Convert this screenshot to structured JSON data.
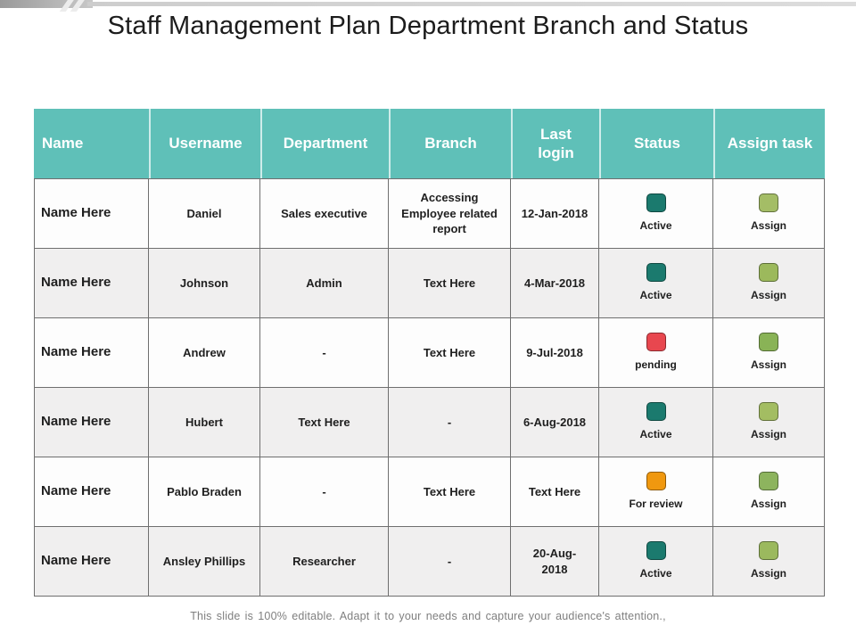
{
  "slide": {
    "title": "Staff Management Plan Department Branch and Status",
    "footer": "This slide is 100% editable. Adapt it to your needs and capture your audience's attention.,"
  },
  "palette": {
    "header_bg": "#5FC0B8",
    "row_alt_bg": "#F0EFEF",
    "grid_border": "#6F6F6F",
    "status_active": "#1B7A6E",
    "status_pending": "#E8474F",
    "status_for_review": "#F0980F",
    "assign_green": "#9BB95E"
  },
  "table": {
    "headers": [
      "Name",
      "Username",
      "Department",
      "Branch",
      "Last login",
      "Status",
      "Assign task"
    ],
    "rows": [
      {
        "name": "Name Here",
        "username": "Daniel",
        "department": "Sales executive",
        "branch": "Accessing Employee related report",
        "last_login": "12-Jan-2018",
        "status": {
          "label": "Active",
          "color": "#1B7A6E"
        },
        "assign": {
          "label": "Assign",
          "color": "#A4BD66"
        }
      },
      {
        "name": "Name Here",
        "username": "Johnson",
        "department": "Admin",
        "branch": "Text Here",
        "last_login": "4-Mar-2018",
        "status": {
          "label": "Active",
          "color": "#1B7A6E"
        },
        "assign": {
          "label": "Assign",
          "color": "#9CB95C"
        }
      },
      {
        "name": "Name Here",
        "username": "Andrew",
        "department": "-",
        "branch": "Text Here",
        "last_login": "9-Jul-2018",
        "status": {
          "label": "pending",
          "color": "#E8474F"
        },
        "assign": {
          "label": "Assign",
          "color": "#89B356"
        }
      },
      {
        "name": "Name Here",
        "username": "Hubert",
        "department": "Text Here",
        "branch": "-",
        "last_login": "6-Aug-2018",
        "status": {
          "label": "Active",
          "color": "#1B7A6E"
        },
        "assign": {
          "label": "Assign",
          "color": "#A3BD62"
        }
      },
      {
        "name": "Name Here",
        "username": "Pablo Braden",
        "department": "-",
        "branch": "Text Here",
        "last_login": "Text Here",
        "status": {
          "label": "For review",
          "color": "#F0980F"
        },
        "assign": {
          "label": "Assign",
          "color": "#8DB45E"
        }
      },
      {
        "name": "Name Here",
        "username": "Ansley Phillips",
        "department": "Researcher",
        "branch": "-",
        "last_login": "20-Aug-2018",
        "status": {
          "label": "Active",
          "color": "#1B7A6E"
        },
        "assign": {
          "label": "Assign",
          "color": "#9BB95E"
        }
      }
    ]
  }
}
